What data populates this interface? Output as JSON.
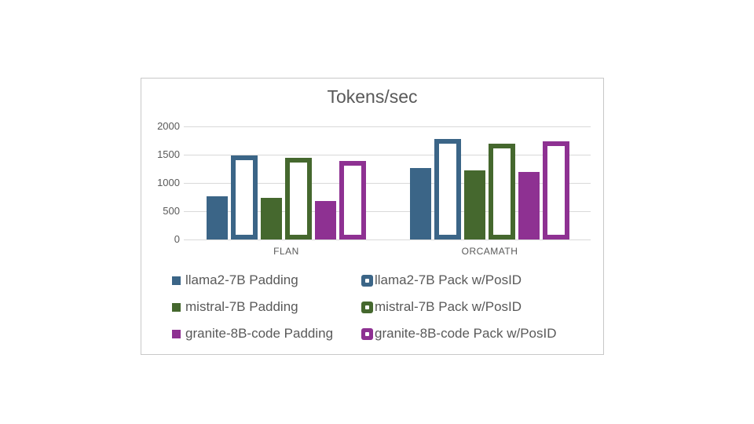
{
  "colors": {
    "canvas_background": "#ffffff",
    "panel_background": "#ffffff",
    "panel_border": "#c8c8c8",
    "gridline": "#d9d9d9",
    "text": "#595959",
    "outlined_bar_fill": "#ffffff",
    "llama2_blue": "#3b6587",
    "mistral_green": "#45682e",
    "granite_purple": "#8e3192"
  },
  "chart_data": {
    "type": "bar",
    "title": "Tokens/sec",
    "categories": [
      "FLAN",
      "ORCAMATH"
    ],
    "series": [
      {
        "name": "llama2-7B Padding",
        "style": "solid",
        "color": "#3b6587",
        "values": [
          760,
          1270
        ]
      },
      {
        "name": "llama2-7B Pack w/PosID",
        "style": "outlined",
        "color": "#3b6587",
        "values": [
          1490,
          1780
        ]
      },
      {
        "name": "mistral-7B Padding",
        "style": "solid",
        "color": "#45682e",
        "values": [
          730,
          1220
        ]
      },
      {
        "name": "mistral-7B Pack w/PosID",
        "style": "outlined",
        "color": "#45682e",
        "values": [
          1450,
          1700
        ]
      },
      {
        "name": "granite-8B-code Padding",
        "style": "solid",
        "color": "#8e3192",
        "values": [
          680,
          1200
        ]
      },
      {
        "name": "granite-8B-code Pack w/PosID",
        "style": "outlined",
        "color": "#8e3192",
        "values": [
          1390,
          1740
        ]
      }
    ],
    "xlabel": "",
    "ylabel": "",
    "ylim": [
      0,
      2000
    ],
    "y_ticks": [
      0,
      500,
      1000,
      1500,
      2000
    ],
    "grid": true,
    "legend_position": "bottom",
    "legend_columns": 2
  }
}
